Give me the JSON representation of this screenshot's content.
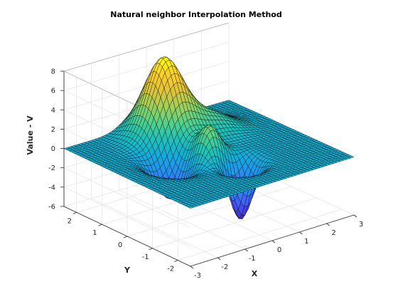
{
  "chart_data": {
    "type": "surface",
    "title": "Natural neighbor Interpolation Method",
    "xlabel": "X",
    "ylabel": "Y",
    "zlabel": "Value - V",
    "xlim": [
      -3,
      3
    ],
    "ylim": [
      -2.5,
      2.5
    ],
    "zlim": [
      -6,
      8
    ],
    "x_ticks": [
      -3,
      -2,
      -1,
      0,
      1,
      2,
      3
    ],
    "y_ticks": [
      -2,
      -1,
      0,
      1,
      2
    ],
    "z_ticks": [
      -6,
      -4,
      -2,
      0,
      2,
      4,
      6,
      8
    ],
    "grid": true,
    "colormap": "parula",
    "grid_resolution": 48,
    "features": [
      {
        "kind": "peak",
        "x": -0.2,
        "y": 1.6,
        "height": 8.0,
        "sx": 0.55,
        "sy": 0.55
      },
      {
        "kind": "peak",
        "x": -0.2,
        "y": -0.2,
        "height": 3.5,
        "sx": 0.38,
        "sy": 0.38
      },
      {
        "kind": "bump",
        "x": 1.0,
        "y": 1.1,
        "height": 2.0,
        "sx": 0.65,
        "sy": 0.5
      },
      {
        "kind": "valley",
        "x": 0.2,
        "y": -1.0,
        "height": -6.0,
        "sx": 0.35,
        "sy": 0.3
      },
      {
        "kind": "valley",
        "x": -1.2,
        "y": 0.2,
        "height": -4.0,
        "sx": 0.45,
        "sy": 0.45
      }
    ]
  }
}
